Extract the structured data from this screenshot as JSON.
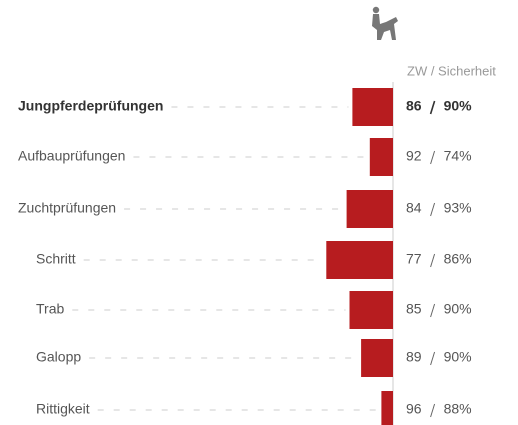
{
  "chart_data": {
    "type": "bar",
    "header": "ZW / Sicherheit",
    "categories": [
      "Jungpferdeprüfungen",
      "Aufbauprüfungen",
      "Zuchtprüfungen",
      "Schritt",
      "Trab",
      "Galopp",
      "Rittigkeit"
    ],
    "series": [
      {
        "name": "ZW",
        "color": "#b71c1f",
        "values": [
          86,
          92,
          84,
          77,
          85,
          89,
          96
        ]
      },
      {
        "name": "Sicherheit",
        "values": [
          90,
          74,
          93,
          86,
          90,
          90,
          88
        ],
        "value_labels": [
          "90%",
          "74%",
          "93%",
          "86%",
          "90%",
          "90%",
          "88%"
        ]
      }
    ],
    "xlim": [
      60,
      100
    ]
  }
}
